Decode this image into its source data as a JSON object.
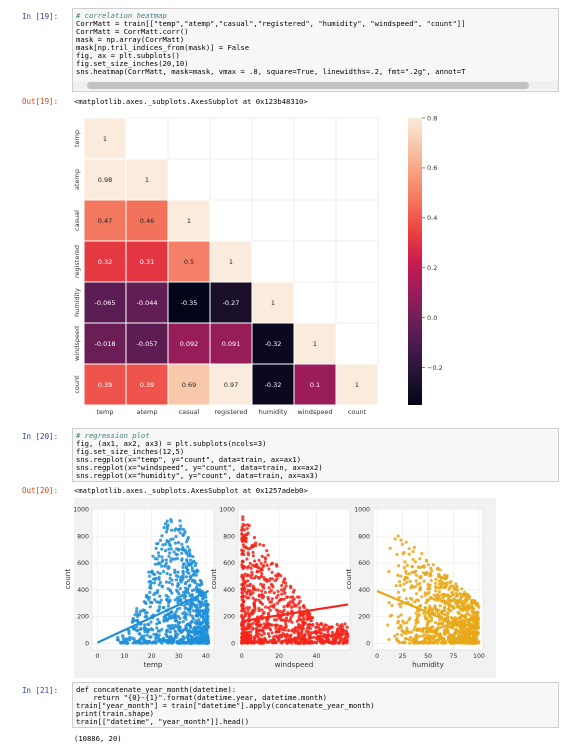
{
  "cells": [
    {
      "in_prompt": "In [19]:",
      "out_prompt": "Out[19]:",
      "code": [
        "# correlation heatmap",
        "CorrMatt = train[[\"temp\",\"atemp\",\"casual\",\"registered\", \"humidity\", \"windspeed\", \"count\"]]",
        "CorrMatt = CorrMatt.corr()",
        "mask = np.array(CorrMatt)",
        "mask[np.tril_indices_from(mask)] = False",
        "fig, ax = plt.subplots()",
        "fig.set_size_inches(20,10)",
        "sns.heatmap(CorrMatt, mask=mask, vmax = .8, square=True, linewidths=.2, fmt=\".2g\", annot=T"
      ],
      "output_text": "<matplotlib.axes._subplots.AxesSubplot at 0x123b48310>"
    },
    {
      "in_prompt": "In [20]:",
      "out_prompt": "Out[20]:",
      "code": [
        "# regression plot",
        "fig, (ax1, ax2, ax3) = plt.subplots(ncols=3)",
        "fig.set_size_inches(12,5)",
        "sns.regplot(x=\"temp\", y=\"count\", data=train, ax=ax1)",
        "sns.regplot(x=\"windspeed\", y=\"count\", data=train, ax=ax2)",
        "sns.regplot(x=\"humidity\", y=\"count\", data=train, ax=ax3)"
      ],
      "output_text": "<matplotlib.axes._subplots.AxesSubplot at 0x1257adeb0>"
    },
    {
      "in_prompt": "In [21]:",
      "code": [
        "def concatenate_year_month(datetime):",
        "    return \"{0}-{1}\".format(datetime.year, datetime.month)",
        "train[\"year_month\"] = train[\"datetime\"].apply(concatenate_year_month)",
        "print(train.shape)",
        "train[[\"datetime\", \"year_month\"]].head()"
      ],
      "output_text": "(10886, 20)"
    }
  ],
  "chart_data": [
    {
      "type": "heatmap",
      "labels": [
        "temp",
        "atemp",
        "casual",
        "registered",
        "humidity",
        "windspeed",
        "count"
      ],
      "lower_triangle": [
        [
          "1"
        ],
        [
          "0.98",
          "1"
        ],
        [
          "0.47",
          "0.46",
          "1"
        ],
        [
          "0.32",
          "0.31",
          "0.5",
          "1"
        ],
        [
          "-0.065",
          "-0.044",
          "-0.35",
          "-0.27",
          "1"
        ],
        [
          "-0.018",
          "-0.057",
          "0.092",
          "0.091",
          "-0.32",
          "1"
        ],
        [
          "0.39",
          "0.39",
          "0.69",
          "0.97",
          "-0.32",
          "0.1",
          "1"
        ]
      ],
      "vmin": -0.35,
      "vmax": 0.8,
      "colorbar_ticks": [
        "0.8",
        "0.6",
        "0.4",
        "0.2",
        "0.0",
        "−0.2"
      ],
      "colormap": "rocket",
      "grid": true
    },
    {
      "type": "scatter",
      "xlabel": "temp",
      "ylabel": "count",
      "x_ticks": [
        "0",
        "10",
        "20",
        "30",
        "40"
      ],
      "y_ticks": [
        "0",
        "200",
        "400",
        "600",
        "800",
        "1000"
      ],
      "xlim": [
        -2,
        43
      ],
      "ylim": [
        -50,
        1010
      ],
      "color": "#1f8fd8",
      "x_range": [
        0.8,
        41
      ],
      "y_range": [
        1,
        977
      ],
      "regression": [
        [
          0,
          5
        ],
        [
          41,
          390
        ]
      ],
      "grid": true
    },
    {
      "type": "scatter",
      "xlabel": "windspeed",
      "ylabel": "count",
      "x_ticks": [
        "0",
        "20",
        "40"
      ],
      "y_ticks": [
        "0",
        "200",
        "400",
        "600",
        "800",
        "1000"
      ],
      "xlim": [
        -2,
        58
      ],
      "ylim": [
        -50,
        1010
      ],
      "color": "#f5251a",
      "x_range": [
        0,
        57
      ],
      "y_range": [
        1,
        977
      ],
      "regression": [
        [
          0,
          165
        ],
        [
          57,
          290
        ]
      ],
      "grid": true
    },
    {
      "type": "scatter",
      "xlabel": "humidity",
      "ylabel": "count",
      "x_ticks": [
        "0",
        "25",
        "50",
        "75",
        "100"
      ],
      "y_ticks": [
        "0",
        "200",
        "400",
        "600",
        "800",
        "1000"
      ],
      "xlim": [
        -4,
        104
      ],
      "ylim": [
        -50,
        1010
      ],
      "color": "#e8a818",
      "x_range": [
        0,
        100
      ],
      "y_range": [
        1,
        977
      ],
      "regression": [
        [
          0,
          390
        ],
        [
          100,
          70
        ]
      ],
      "grid": true
    }
  ]
}
